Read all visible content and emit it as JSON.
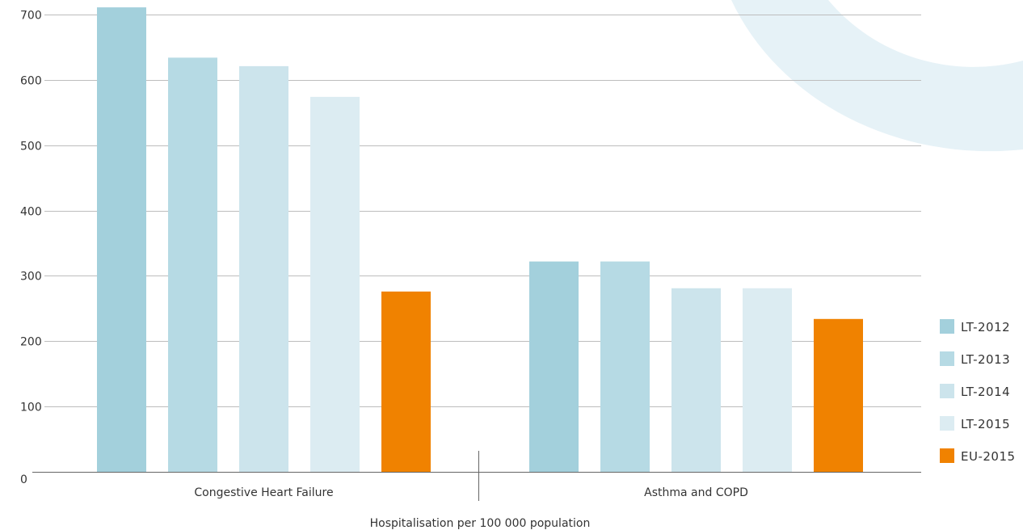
{
  "chart_data": {
    "type": "bar",
    "title": "",
    "xlabel": "Hospitalisation per 100 000 population",
    "ylabel": "",
    "ylim": [
      0,
      700
    ],
    "yticks": [
      0,
      100,
      200,
      300,
      400,
      500,
      600,
      700
    ],
    "grid": true,
    "legend_position": "right",
    "categories": [
      "Congestive Heart Failure",
      "Asthma and COPD"
    ],
    "series": [
      {
        "name": "LT-2012",
        "color": "#a3d0dc",
        "values": [
          711,
          322
        ]
      },
      {
        "name": "LT-2013",
        "color": "#b6dae4",
        "values": [
          634,
          322
        ]
      },
      {
        "name": "LT-2014",
        "color": "#cce4ec",
        "values": [
          621,
          281
        ]
      },
      {
        "name": "LT-2015",
        "color": "#dcecf2",
        "values": [
          574,
          281
        ]
      },
      {
        "name": "EU-2015",
        "color": "#f08200",
        "values": [
          276,
          234
        ]
      }
    ]
  }
}
